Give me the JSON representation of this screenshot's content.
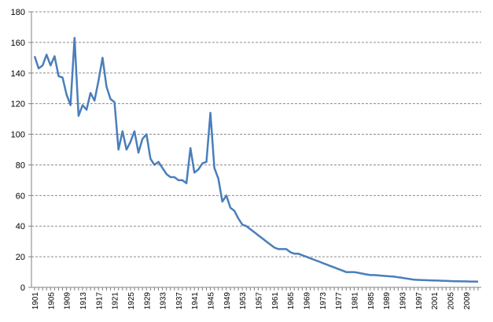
{
  "chart_data": {
    "type": "line",
    "title": "",
    "xlabel": "",
    "ylabel": "",
    "ylim": [
      0,
      180
    ],
    "yticks": [
      0,
      20,
      40,
      60,
      80,
      100,
      120,
      140,
      160,
      180
    ],
    "xtick_labels": [
      "1901",
      "1905",
      "1909",
      "1913",
      "1917",
      "1921",
      "1925",
      "1929",
      "1933",
      "1937",
      "1941",
      "1945",
      "1949",
      "1953",
      "1957",
      "1961",
      "1965",
      "1969",
      "1973",
      "1977",
      "1981",
      "1985",
      "1989",
      "1993",
      "1997",
      "2001",
      "2005",
      "2009"
    ],
    "grid": "horizontal dashed",
    "legend": "none",
    "series_color": "#4a7ebb",
    "series": [
      {
        "x": [
          1901,
          1902,
          1903,
          1904,
          1905,
          1906,
          1907,
          1908,
          1909,
          1910,
          1911,
          1912,
          1913,
          1914,
          1915,
          1916,
          1917,
          1918,
          1919,
          1920,
          1921,
          1922,
          1923,
          1924,
          1925,
          1926,
          1927,
          1928,
          1929,
          1930,
          1931,
          1932,
          1933,
          1934,
          1935,
          1936,
          1937,
          1938,
          1939,
          1940,
          1941,
          1942,
          1943,
          1944,
          1945,
          1946,
          1947,
          1948,
          1949,
          1950,
          1951,
          1952,
          1953,
          1954,
          1955,
          1956,
          1957,
          1958,
          1959,
          1960,
          1961,
          1962,
          1963,
          1964,
          1965,
          1966,
          1967,
          1968,
          1969,
          1970,
          1971,
          1972,
          1973,
          1974,
          1975,
          1976,
          1977,
          1978,
          1979,
          1980,
          1981,
          1982,
          1983,
          1984,
          1985,
          1986,
          1987,
          1988,
          1989,
          1990,
          1991,
          1992,
          1993,
          1994,
          1995,
          1996,
          1997,
          1998,
          1999,
          2000,
          2001,
          2002,
          2003,
          2004,
          2005,
          2006,
          2007,
          2008,
          2009,
          2010,
          2011,
          2012
        ],
        "values": [
          151,
          143,
          145,
          152,
          145,
          151,
          138,
          137,
          126,
          119,
          163,
          112,
          119,
          116,
          127,
          122,
          135,
          150,
          131,
          123,
          121,
          90,
          102,
          90,
          95,
          102,
          88,
          97,
          100,
          84,
          80,
          82,
          78,
          74,
          72,
          72,
          70,
          70,
          68,
          91,
          75,
          77,
          81,
          82,
          114,
          78,
          71,
          56,
          60,
          52,
          50,
          45,
          41,
          40,
          38,
          36,
          34,
          32,
          30,
          28,
          26,
          25,
          25,
          25,
          23,
          22,
          22,
          21,
          20,
          19,
          18,
          17,
          16,
          15,
          14,
          13,
          12,
          11,
          10,
          10,
          10,
          9.5,
          9,
          8.5,
          8,
          8,
          7.8,
          7.6,
          7.4,
          7.2,
          7,
          6.6,
          6.2,
          5.8,
          5.4,
          5,
          4.9,
          4.8,
          4.7,
          4.6,
          4.5,
          4.4,
          4.3,
          4.2,
          4.1,
          4,
          4,
          3.9,
          3.9,
          3.8,
          3.8,
          3.7
        ]
      }
    ]
  }
}
